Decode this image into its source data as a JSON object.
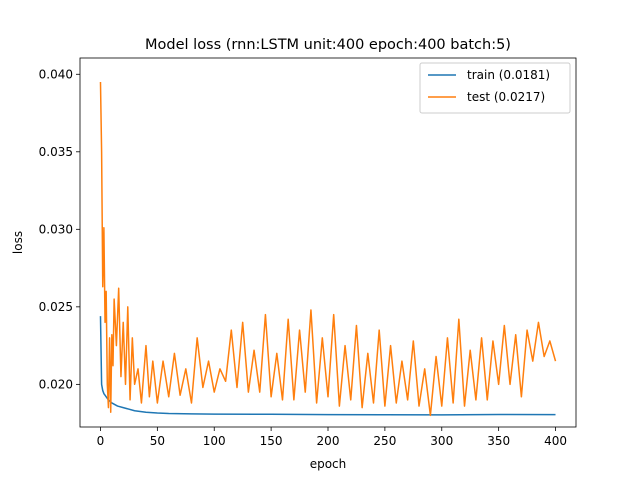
{
  "chart_data": {
    "type": "line",
    "title": "Model loss (rnn:LSTM unit:400 epoch:400 batch:5)",
    "xlabel": "epoch",
    "ylabel": "loss",
    "xlim": [
      -18,
      418
    ],
    "ylim": [
      0.01725,
      0.04105
    ],
    "xticks": [
      0,
      50,
      100,
      150,
      200,
      250,
      300,
      350,
      400
    ],
    "yticks": [
      0.02,
      0.025,
      0.03,
      0.035,
      0.04
    ],
    "ytick_labels": [
      "0.020",
      "0.025",
      "0.030",
      "0.035",
      "0.040"
    ],
    "grid": false,
    "legend_position": "top-right",
    "colors": {
      "train": "#1f77b4",
      "test": "#ff7f0e"
    },
    "series": [
      {
        "name": "train (0.0181)",
        "x": [
          0,
          1,
          2,
          3,
          4,
          5,
          7,
          10,
          15,
          20,
          30,
          40,
          50,
          60,
          80,
          100,
          150,
          200,
          250,
          300,
          350,
          400
        ],
        "y": [
          0.0244,
          0.02,
          0.0196,
          0.0194,
          0.0193,
          0.0192,
          0.019,
          0.0188,
          0.0186,
          0.0185,
          0.0183,
          0.0182,
          0.01815,
          0.01812,
          0.0181,
          0.01808,
          0.01807,
          0.01805,
          0.01804,
          0.01803,
          0.01806,
          0.01805
        ]
      },
      {
        "name": "test (0.0217)",
        "x": [
          0,
          1,
          2,
          3,
          4,
          5,
          6,
          7,
          8,
          9,
          10,
          11,
          12,
          14,
          16,
          18,
          20,
          22,
          24,
          26,
          28,
          30,
          33,
          36,
          40,
          43,
          46,
          50,
          55,
          60,
          65,
          70,
          75,
          80,
          85,
          90,
          95,
          100,
          105,
          110,
          115,
          120,
          125,
          130,
          135,
          140,
          145,
          150,
          155,
          160,
          165,
          170,
          175,
          180,
          185,
          190,
          195,
          200,
          205,
          210,
          215,
          220,
          225,
          230,
          235,
          240,
          245,
          250,
          255,
          260,
          265,
          270,
          275,
          280,
          285,
          290,
          295,
          300,
          305,
          310,
          315,
          320,
          325,
          330,
          335,
          340,
          345,
          350,
          355,
          360,
          365,
          370,
          375,
          380,
          385,
          390,
          395,
          400
        ],
        "y": [
          0.0395,
          0.035,
          0.0263,
          0.0301,
          0.024,
          0.026,
          0.02,
          0.0185,
          0.023,
          0.0182,
          0.0232,
          0.0212,
          0.0255,
          0.0225,
          0.0262,
          0.0205,
          0.024,
          0.02,
          0.025,
          0.019,
          0.023,
          0.02,
          0.021,
          0.0188,
          0.0225,
          0.0192,
          0.0215,
          0.0188,
          0.0215,
          0.0192,
          0.022,
          0.0193,
          0.021,
          0.0188,
          0.023,
          0.0198,
          0.0215,
          0.0195,
          0.021,
          0.0202,
          0.0235,
          0.0198,
          0.024,
          0.0195,
          0.0222,
          0.0195,
          0.0245,
          0.0192,
          0.022,
          0.019,
          0.0242,
          0.019,
          0.0235,
          0.0195,
          0.0248,
          0.0188,
          0.023,
          0.0192,
          0.0245,
          0.0186,
          0.0225,
          0.019,
          0.0238,
          0.0185,
          0.022,
          0.0188,
          0.0235,
          0.0186,
          0.0225,
          0.0188,
          0.0215,
          0.019,
          0.0228,
          0.0186,
          0.021,
          0.018,
          0.0218,
          0.0186,
          0.023,
          0.0188,
          0.0242,
          0.0186,
          0.0222,
          0.019,
          0.023,
          0.019,
          0.0228,
          0.02,
          0.0238,
          0.02,
          0.0232,
          0.0192,
          0.0235,
          0.0215,
          0.024,
          0.0218,
          0.0228,
          0.0215
        ]
      }
    ]
  }
}
